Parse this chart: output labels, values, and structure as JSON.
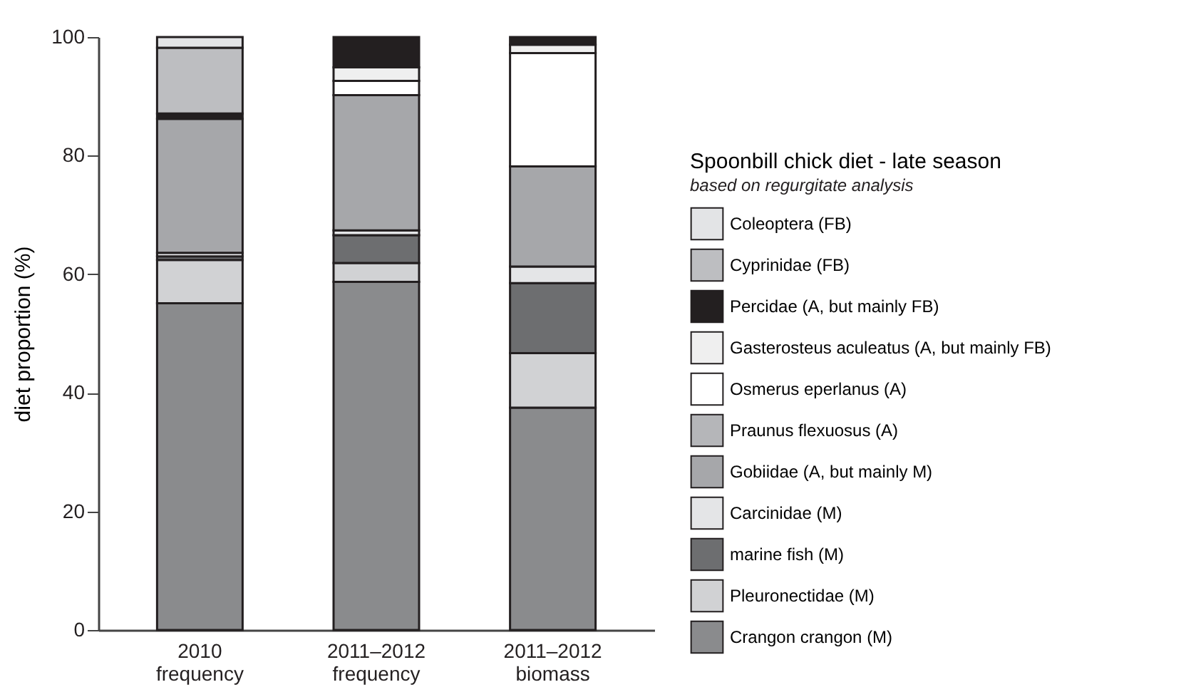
{
  "chart_data": {
    "type": "bar",
    "stacked": true,
    "ylabel": "diet proportion (%)",
    "legend_title": "Spoonbill chick diet - late season",
    "subtitle": "based on regurgitate analysis",
    "legend": "right",
    "categories": [
      "2010\nfrequency",
      "2011–2012\nfrequency",
      "2011–2012\nbiomass"
    ],
    "ylim": [
      0,
      100
    ],
    "yticks": [
      0,
      20,
      40,
      60,
      80,
      100
    ],
    "grid": false,
    "series": [
      {
        "name": "Crangon crangon (M)",
        "color": "#8a8b8d",
        "values": [
          55.1,
          58.7,
          37.5
        ]
      },
      {
        "name": "Pleuronectidae (M)",
        "color": "#d1d2d4",
        "values": [
          7.3,
          3.2,
          9.2
        ]
      },
      {
        "name": "marine fish (M)",
        "color": "#6d6e70",
        "values": [
          0.6,
          4.7,
          11.8
        ]
      },
      {
        "name": "Carcinidae (M)",
        "color": "#e4e5e7",
        "values": [
          0.6,
          0.8,
          2.8
        ]
      },
      {
        "name": "Gobiidae (A, but mainly M)",
        "color": "#a6a7aa",
        "values": [
          22.6,
          22.8,
          16.9
        ]
      },
      {
        "name": "Praunus flexuosus (A)",
        "color": "#b5b6b9",
        "values": [
          0,
          0,
          0
        ]
      },
      {
        "name": "Osmerus eperlanus (A)",
        "color": "#ffffff",
        "values": [
          0,
          2.4,
          19.1
        ]
      },
      {
        "name": "Gasterosteus aculeatus (A, but mainly FB)",
        "color": "#efefef",
        "values": [
          0,
          2.3,
          1.4
        ]
      },
      {
        "name": "Percidae (A, but mainly FB)",
        "color": "#231f20",
        "values": [
          0.9,
          5.1,
          1.3
        ]
      },
      {
        "name": "Cyprinidae (FB)",
        "color": "#bdbec1",
        "values": [
          11.1,
          0,
          0
        ]
      },
      {
        "name": "Coleoptera (FB)",
        "color": "#e3e4e6",
        "values": [
          1.8,
          0,
          0
        ]
      }
    ]
  }
}
